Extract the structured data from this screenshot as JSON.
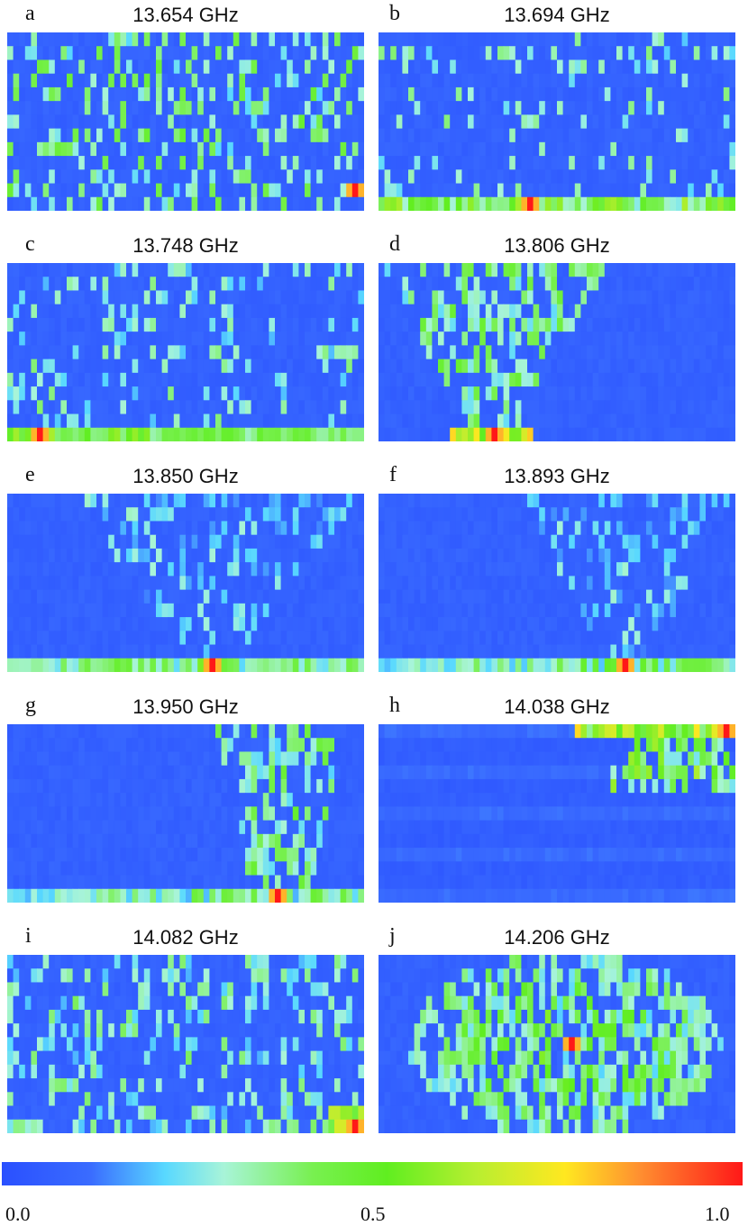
{
  "chart_data": {
    "type": "heatmap",
    "colormap": "jet",
    "grid": false,
    "panels": [
      {
        "letter": "a",
        "title": "13.654 GHz",
        "pattern": "scattered",
        "hot_col": 0.99,
        "hot_row": 11
      },
      {
        "letter": "b",
        "title": "13.694 GHz",
        "pattern": "bottom_band",
        "hot_col": 0.43,
        "hot_row": 12
      },
      {
        "letter": "c",
        "title": "13.748 GHz",
        "pattern": "bottom_band_left",
        "hot_col": 0.08,
        "hot_row": 12
      },
      {
        "letter": "d",
        "title": "13.806 GHz",
        "pattern": "left_cone",
        "hot_col": 0.32,
        "hot_row": 12
      },
      {
        "letter": "e",
        "title": "13.850 GHz",
        "pattern": "center_cone",
        "hot_col": 0.58,
        "hot_row": 12
      },
      {
        "letter": "f",
        "title": "13.893 GHz",
        "pattern": "right_center_cone",
        "hot_col": 0.7,
        "hot_row": 12
      },
      {
        "letter": "g",
        "title": "13.950 GHz",
        "pattern": "right_cone",
        "hot_col": 0.77,
        "hot_row": 12
      },
      {
        "letter": "h",
        "title": "14.038 GHz",
        "pattern": "top_right",
        "hot_col": 0.98,
        "hot_row": 0
      },
      {
        "letter": "i",
        "title": "14.082 GHz",
        "pattern": "scattered_bottom_right",
        "hot_col": 0.99,
        "hot_row": 12
      },
      {
        "letter": "j",
        "title": "14.206 GHz",
        "pattern": "center_blob",
        "hot_col": 0.55,
        "hot_row": 6
      }
    ],
    "rows": 13,
    "columns": 60,
    "colorbar": {
      "min": 0.0,
      "max": 1.0,
      "ticks": [
        "0.0",
        "0.5",
        "1.0"
      ]
    }
  }
}
